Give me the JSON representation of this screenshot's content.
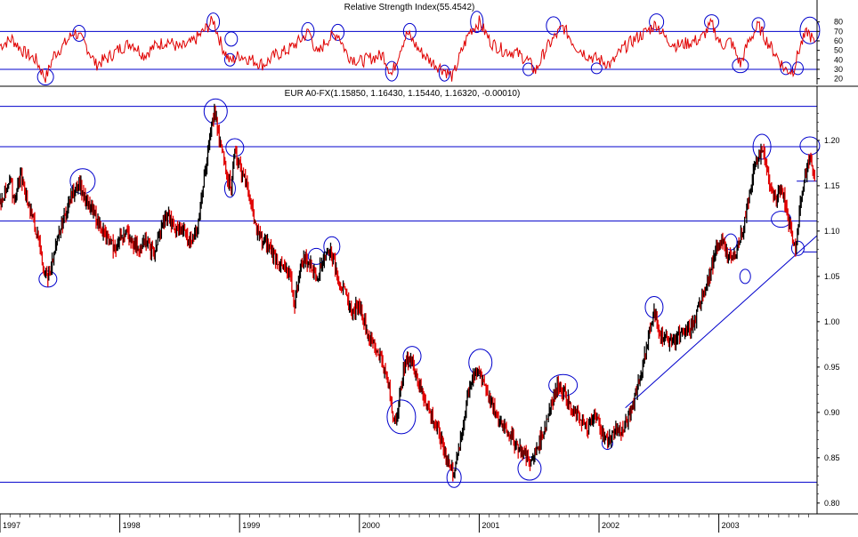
{
  "colors": {
    "background": "#ffffff",
    "rsi_line": "#e00000",
    "price_up": "#000000",
    "price_down": "#e00000",
    "annotation": "#0000cc",
    "frame": "#000000"
  },
  "rsi_panel": {
    "title": "Relative Strength Index(55.4542)",
    "yticks": [
      "80",
      "70",
      "60",
      "50",
      "40",
      "30",
      "20"
    ],
    "tick_values": [
      80,
      70,
      60,
      50,
      40,
      30,
      20
    ],
    "ylim": [
      14,
      90
    ],
    "level_lines": [
      70,
      30
    ]
  },
  "price_panel": {
    "title": "EUR A0-FX(1.15850, 1.16430, 1.15440, 1.16320, -0.00010)",
    "yticks": [
      "1.20",
      "1.15",
      "1.10",
      "1.05",
      "1.00",
      "0.95",
      "0.90",
      "0.85",
      "0.80"
    ],
    "tick_values": [
      1.2,
      1.15,
      1.1,
      1.05,
      1.0,
      0.95,
      0.9,
      0.85,
      0.8
    ],
    "ylim": [
      0.79,
      1.245
    ],
    "level_lines": [
      1.2375,
      1.193,
      1.111,
      0.823
    ]
  },
  "x_axis": {
    "labels": [
      "1997",
      "1998",
      "1999",
      "2000",
      "2001",
      "2002",
      "2003"
    ],
    "label_times": [
      1997.0,
      1998.0,
      1999.0,
      2000.0,
      2001.0,
      2002.0,
      2003.0
    ],
    "xlim": [
      1997.0,
      2003.82
    ]
  },
  "chart_data": [
    {
      "type": "line",
      "title": "Relative Strength Index(55.4542)",
      "x_unit": "year",
      "ylim": [
        14,
        90
      ],
      "series": [
        {
          "name": "Relative Strength Index",
          "points": [
            [
              1997.0,
              55
            ],
            [
              1997.1,
              62
            ],
            [
              1997.2,
              48
            ],
            [
              1997.3,
              40
            ],
            [
              1997.38,
              20
            ],
            [
              1997.45,
              45
            ],
            [
              1997.55,
              58
            ],
            [
              1997.62,
              70
            ],
            [
              1997.72,
              55
            ],
            [
              1997.8,
              35
            ],
            [
              1997.9,
              42
            ],
            [
              1998.0,
              52
            ],
            [
              1998.1,
              58
            ],
            [
              1998.2,
              45
            ],
            [
              1998.3,
              55
            ],
            [
              1998.4,
              60
            ],
            [
              1998.5,
              52
            ],
            [
              1998.6,
              58
            ],
            [
              1998.7,
              70
            ],
            [
              1998.78,
              82
            ],
            [
              1998.85,
              55
            ],
            [
              1998.92,
              38
            ],
            [
              1999.0,
              45
            ],
            [
              1999.1,
              40
            ],
            [
              1999.2,
              35
            ],
            [
              1999.3,
              45
            ],
            [
              1999.4,
              50
            ],
            [
              1999.5,
              60
            ],
            [
              1999.58,
              70
            ],
            [
              1999.65,
              45
            ],
            [
              1999.72,
              60
            ],
            [
              1999.82,
              68
            ],
            [
              1999.9,
              45
            ],
            [
              2000.0,
              38
            ],
            [
              2000.1,
              42
            ],
            [
              2000.2,
              45
            ],
            [
              2000.27,
              24
            ],
            [
              2000.35,
              55
            ],
            [
              2000.4,
              68
            ],
            [
              2000.5,
              50
            ],
            [
              2000.6,
              38
            ],
            [
              2000.7,
              30
            ],
            [
              2000.78,
              22
            ],
            [
              2000.85,
              48
            ],
            [
              2000.92,
              70
            ],
            [
              2001.0,
              80
            ],
            [
              2001.1,
              58
            ],
            [
              2001.2,
              50
            ],
            [
              2001.3,
              48
            ],
            [
              2001.4,
              40
            ],
            [
              2001.47,
              28
            ],
            [
              2001.55,
              50
            ],
            [
              2001.62,
              62
            ],
            [
              2001.7,
              75
            ],
            [
              2001.8,
              55
            ],
            [
              2001.9,
              45
            ],
            [
              2002.0,
              40
            ],
            [
              2002.1,
              35
            ],
            [
              2002.2,
              52
            ],
            [
              2002.3,
              62
            ],
            [
              2002.4,
              70
            ],
            [
              2002.48,
              78
            ],
            [
              2002.56,
              62
            ],
            [
              2002.65,
              55
            ],
            [
              2002.75,
              58
            ],
            [
              2002.85,
              62
            ],
            [
              2002.94,
              78
            ],
            [
              2003.02,
              55
            ],
            [
              2003.1,
              60
            ],
            [
              2003.18,
              35
            ],
            [
              2003.25,
              60
            ],
            [
              2003.33,
              76
            ],
            [
              2003.4,
              60
            ],
            [
              2003.48,
              45
            ],
            [
              2003.55,
              30
            ],
            [
              2003.62,
              28
            ],
            [
              2003.68,
              55
            ],
            [
              2003.74,
              70
            ],
            [
              2003.8,
              58
            ]
          ]
        }
      ],
      "reference_lines": [
        70,
        30
      ]
    },
    {
      "type": "line",
      "title": "EUR A0-FX(1.15850, 1.16430, 1.15440, 1.16320, -0.00010)",
      "x_unit": "year",
      "ylim": [
        0.79,
        1.245
      ],
      "last_bar": {
        "open": 1.1585,
        "high": 1.1643,
        "low": 1.1544,
        "close": 1.1632,
        "change": -0.0001
      },
      "series": [
        {
          "name": "EUR A0-FX",
          "points": [
            [
              1997.0,
              1.13
            ],
            [
              1997.04,
              1.142
            ],
            [
              1997.08,
              1.158
            ],
            [
              1997.12,
              1.135
            ],
            [
              1997.17,
              1.162
            ],
            [
              1997.22,
              1.14
            ],
            [
              1997.26,
              1.12
            ],
            [
              1997.32,
              1.09
            ],
            [
              1997.36,
              1.06
            ],
            [
              1997.4,
              1.05
            ],
            [
              1997.45,
              1.07
            ],
            [
              1997.5,
              1.1
            ],
            [
              1997.55,
              1.12
            ],
            [
              1997.6,
              1.14
            ],
            [
              1997.66,
              1.155
            ],
            [
              1997.72,
              1.13
            ],
            [
              1997.78,
              1.12
            ],
            [
              1997.84,
              1.105
            ],
            [
              1997.9,
              1.09
            ],
            [
              1997.96,
              1.08
            ],
            [
              1998.04,
              1.1
            ],
            [
              1998.1,
              1.09
            ],
            [
              1998.16,
              1.08
            ],
            [
              1998.22,
              1.09
            ],
            [
              1998.28,
              1.075
            ],
            [
              1998.34,
              1.1
            ],
            [
              1998.4,
              1.12
            ],
            [
              1998.46,
              1.1
            ],
            [
              1998.52,
              1.105
            ],
            [
              1998.58,
              1.09
            ],
            [
              1998.64,
              1.1
            ],
            [
              1998.68,
              1.14
            ],
            [
              1998.72,
              1.17
            ],
            [
              1998.75,
              1.2
            ],
            [
              1998.79,
              1.232
            ],
            [
              1998.83,
              1.2
            ],
            [
              1998.87,
              1.18
            ],
            [
              1998.9,
              1.16
            ],
            [
              1998.93,
              1.15
            ],
            [
              1998.96,
              1.19
            ],
            [
              1999.0,
              1.17
            ],
            [
              1999.04,
              1.16
            ],
            [
              1999.08,
              1.14
            ],
            [
              1999.12,
              1.11
            ],
            [
              1999.18,
              1.09
            ],
            [
              1999.24,
              1.085
            ],
            [
              1999.3,
              1.07
            ],
            [
              1999.36,
              1.06
            ],
            [
              1999.42,
              1.05
            ],
            [
              1999.46,
              1.02
            ],
            [
              1999.5,
              1.06
            ],
            [
              1999.55,
              1.07
            ],
            [
              1999.6,
              1.06
            ],
            [
              1999.65,
              1.05
            ],
            [
              1999.7,
              1.07
            ],
            [
              1999.76,
              1.08
            ],
            [
              1999.82,
              1.05
            ],
            [
              1999.88,
              1.03
            ],
            [
              1999.94,
              1.01
            ],
            [
              2000.0,
              1.02
            ],
            [
              2000.06,
              0.99
            ],
            [
              2000.12,
              0.975
            ],
            [
              2000.18,
              0.96
            ],
            [
              2000.24,
              0.93
            ],
            [
              2000.28,
              0.895
            ],
            [
              2000.32,
              0.9
            ],
            [
              2000.36,
              0.94
            ],
            [
              2000.4,
              0.96
            ],
            [
              2000.45,
              0.955
            ],
            [
              2000.5,
              0.93
            ],
            [
              2000.56,
              0.91
            ],
            [
              2000.62,
              0.89
            ],
            [
              2000.68,
              0.87
            ],
            [
              2000.73,
              0.85
            ],
            [
              2000.78,
              0.835
            ],
            [
              2000.82,
              0.85
            ],
            [
              2000.86,
              0.88
            ],
            [
              2000.9,
              0.92
            ],
            [
              2000.95,
              0.94
            ],
            [
              2001.0,
              0.945
            ],
            [
              2001.05,
              0.93
            ],
            [
              2001.1,
              0.91
            ],
            [
              2001.16,
              0.89
            ],
            [
              2001.22,
              0.885
            ],
            [
              2001.28,
              0.87
            ],
            [
              2001.34,
              0.86
            ],
            [
              2001.4,
              0.85
            ],
            [
              2001.44,
              0.843
            ],
            [
              2001.48,
              0.86
            ],
            [
              2001.54,
              0.88
            ],
            [
              2001.6,
              0.91
            ],
            [
              2001.66,
              0.93
            ],
            [
              2001.72,
              0.92
            ],
            [
              2001.78,
              0.9
            ],
            [
              2001.84,
              0.895
            ],
            [
              2001.9,
              0.88
            ],
            [
              2001.96,
              0.895
            ],
            [
              2002.0,
              0.89
            ],
            [
              2002.04,
              0.87
            ],
            [
              2002.08,
              0.87
            ],
            [
              2002.14,
              0.88
            ],
            [
              2002.2,
              0.88
            ],
            [
              2002.26,
              0.9
            ],
            [
              2002.32,
              0.93
            ],
            [
              2002.38,
              0.96
            ],
            [
              2002.42,
              0.99
            ],
            [
              2002.46,
              1.01
            ],
            [
              2002.5,
              0.99
            ],
            [
              2002.56,
              0.98
            ],
            [
              2002.62,
              0.98
            ],
            [
              2002.68,
              0.985
            ],
            [
              2002.74,
              0.99
            ],
            [
              2002.8,
              1.0
            ],
            [
              2002.86,
              1.03
            ],
            [
              2002.92,
              1.05
            ],
            [
              2002.98,
              1.08
            ],
            [
              2003.04,
              1.09
            ],
            [
              2003.08,
              1.07
            ],
            [
              2003.12,
              1.07
            ],
            [
              2003.16,
              1.085
            ],
            [
              2003.2,
              1.1
            ],
            [
              2003.24,
              1.13
            ],
            [
              2003.28,
              1.16
            ],
            [
              2003.32,
              1.18
            ],
            [
              2003.36,
              1.19
            ],
            [
              2003.4,
              1.17
            ],
            [
              2003.44,
              1.14
            ],
            [
              2003.48,
              1.13
            ],
            [
              2003.52,
              1.15
            ],
            [
              2003.56,
              1.13
            ],
            [
              2003.6,
              1.1
            ],
            [
              2003.64,
              1.08
            ],
            [
              2003.68,
              1.13
            ],
            [
              2003.72,
              1.16
            ],
            [
              2003.76,
              1.18
            ],
            [
              2003.8,
              1.163
            ]
          ]
        }
      ]
    }
  ]
}
